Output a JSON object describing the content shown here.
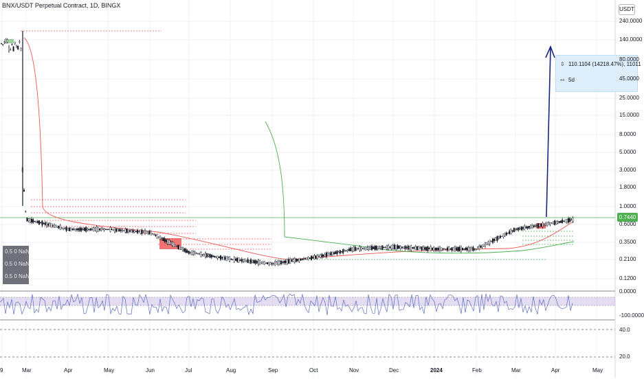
{
  "header": {
    "title": "BNX/USDT Perpetual Contract, 1D, BINGX",
    "unit_badge": "USDT"
  },
  "indicator_box": {
    "rows": [
      "0.5 0 NaN",
      "0.5 0 NaN",
      "0.5 0 NaN"
    ]
  },
  "measure_tooltip": {
    "change": "110.1104 (14218.47%), 11011",
    "duration": "5d"
  },
  "last_price": "0.7440",
  "colors": {
    "up": "#26a69a",
    "up_soft": "#4caf50",
    "down": "#ef5350",
    "rsi_line": "#7e57c2",
    "rsi_band": "#b39ddb",
    "arrow": "#1a237e",
    "bar": "#131722"
  },
  "chart_data": [
    {
      "type": "line",
      "scale": "log",
      "y_ticks": [
        "240.0000",
        "140.0000",
        "80.0000",
        "45.0000",
        "25.0000",
        "15.0000",
        "8.0000",
        "5.0000",
        "3.0000",
        "1.8000",
        "1.0000",
        "0.6000",
        "0.3500",
        "0.2100",
        "0.1200"
      ],
      "x_ticks": [
        "9",
        "Mar",
        "Apr",
        "May",
        "Jun",
        "Jul",
        "Aug",
        "Sep",
        "Oct",
        "Nov",
        "Dec",
        "2024",
        "Feb",
        "Mar",
        "Apr",
        "May"
      ],
      "ylim": [
        0.1,
        300
      ],
      "series": [
        {
          "name": "",
          "x": [
            "Feb",
            "Mar",
            "Apr",
            "May",
            "Jun",
            "Jul",
            "Aug",
            "Sep",
            "Oct",
            "Nov",
            "Dec",
            "2024",
            "Feb",
            "Mar",
            "Apr"
          ],
          "y": [
            150,
            0.75,
            0.55,
            0.55,
            0.5,
            0.27,
            0.22,
            0.19,
            0.23,
            0.3,
            0.32,
            0.3,
            0.3,
            0.55,
            0.744
          ]
        }
      ],
      "annotations": [
        "110.1104 (14218.47%), 11011",
        "5d"
      ]
    },
    {
      "type": "line",
      "y_ticks": [
        "0.0000",
        "-100.0000"
      ],
      "ylim": [
        -100,
        0
      ]
    },
    {
      "type": "line",
      "y_ticks": [
        "40.0",
        "20.0"
      ]
    }
  ]
}
